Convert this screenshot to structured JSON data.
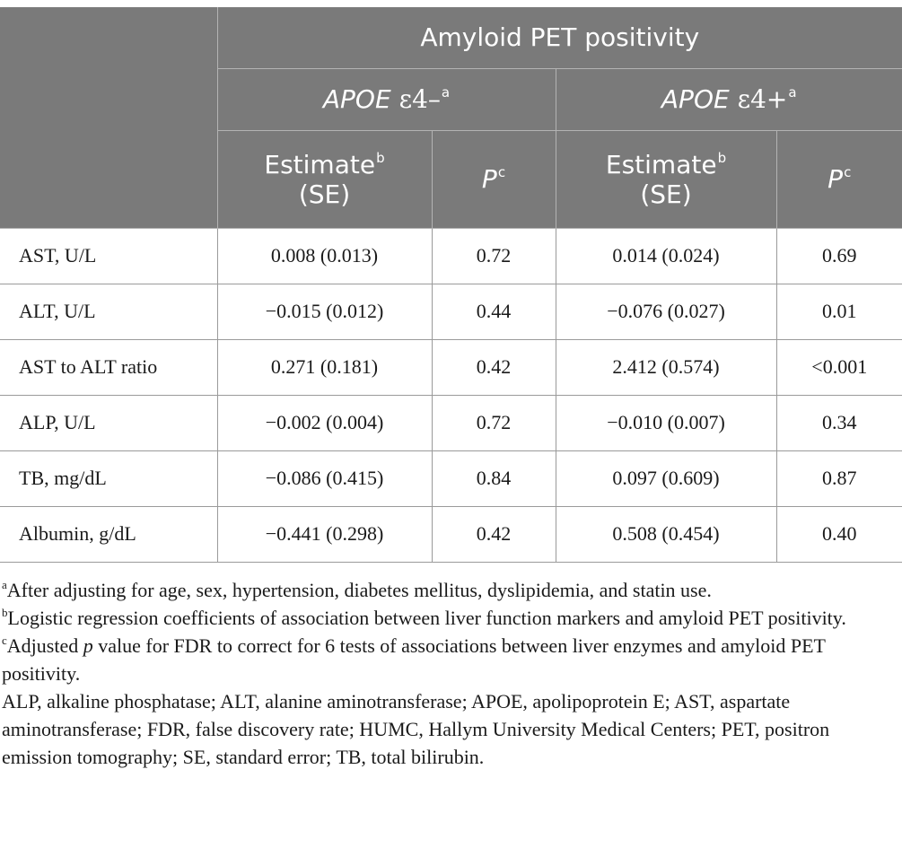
{
  "header": {
    "group_title": "Amyloid PET positivity",
    "apoe_neg": {
      "gene": "APOE",
      "allele": "ε4–",
      "marker": "a"
    },
    "apoe_pos": {
      "gene": "APOE",
      "allele": "ε4+",
      "marker": "a"
    },
    "estimate_label": "Estimate",
    "estimate_marker": "b",
    "se_label": "(SE)",
    "p_label": "P",
    "p_marker": "c"
  },
  "rows": [
    {
      "label": "AST, U/L",
      "neg_estimate": "0.008 (0.013)",
      "neg_p": "0.72",
      "pos_estimate": "0.014 (0.024)",
      "pos_p": "0.69"
    },
    {
      "label": "ALT, U/L",
      "neg_estimate": "−0.015 (0.012)",
      "neg_p": "0.44",
      "pos_estimate": "−0.076 (0.027)",
      "pos_p": "0.01"
    },
    {
      "label": "AST to ALT ratio",
      "neg_estimate": "0.271 (0.181)",
      "neg_p": "0.42",
      "pos_estimate": "2.412 (0.574)",
      "pos_p": "<0.001"
    },
    {
      "label": "ALP, U/L",
      "neg_estimate": "−0.002 (0.004)",
      "neg_p": "0.72",
      "pos_estimate": "−0.010 (0.007)",
      "pos_p": "0.34"
    },
    {
      "label": "TB, mg/dL",
      "neg_estimate": "−0.086 (0.415)",
      "neg_p": "0.84",
      "pos_estimate": "0.097 (0.609)",
      "pos_p": "0.87"
    },
    {
      "label": "Albumin, g/dL",
      "neg_estimate": "−0.441 (0.298)",
      "neg_p": "0.42",
      "pos_estimate": "0.508 (0.454)",
      "pos_p": "0.40"
    }
  ],
  "footnotes": {
    "a": {
      "marker": "a",
      "text": "After adjusting for age, sex, hypertension, diabetes mellitus, dyslipidemia, and statin use."
    },
    "b": {
      "marker": "b",
      "text": "Logistic regression coefficients of association between liver function markers and amyloid PET positivity."
    },
    "c": {
      "marker": "c",
      "text_before": "Adjusted ",
      "italic": "p",
      "text_after": " value for FDR to correct for 6 tests of associations between liver enzymes and amyloid PET positivity."
    },
    "abbreviations": "ALP, alkaline phosphatase; ALT, alanine aminotransferase; APOE, apolipoprotein E; AST, aspartate aminotransferase; FDR, false discovery rate; HUMC, Hallym University Medical Centers; PET, positron emission tomography; SE, standard error; TB, total bilirubin."
  }
}
